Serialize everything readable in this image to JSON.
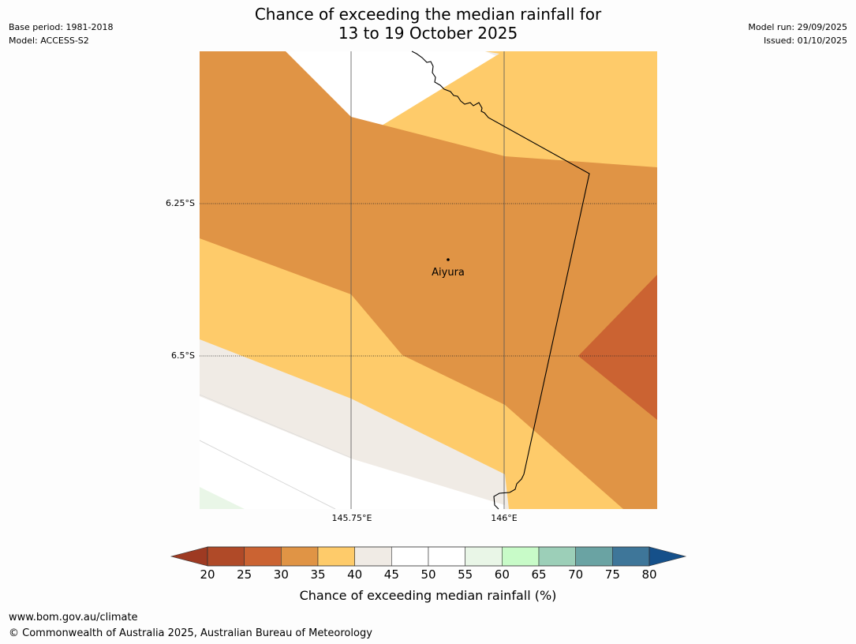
{
  "header": {
    "title_line1": "Chance of exceeding the median rainfall for",
    "title_line2": "13 to 19 October 2025",
    "base_period": "Base period: 1981-2018",
    "model": "Model: ACCESS-S2",
    "model_run": "Model run: 29/09/2025",
    "issued": "Issued: 01/10/2025"
  },
  "map": {
    "place_label": "Aiyura",
    "lat_ticks": [
      "6.25°S",
      "6.5°S"
    ],
    "lon_ticks": [
      "145.75°E",
      "146°E"
    ],
    "colors": {
      "c20_25": "#b04a28",
      "c25_30": "#cb6332",
      "c30_35": "#e09445",
      "c35_40": "#fecb6a",
      "c40_45": "#f0ebe5",
      "c45_55": "#ffffff",
      "c55_60": "#e9f6e7",
      "low_extend": "#9e3a22",
      "high_extend": "#15508a"
    }
  },
  "colorbar": {
    "ticks": [
      "20",
      "25",
      "30",
      "35",
      "40",
      "45",
      "50",
      "55",
      "60",
      "65",
      "70",
      "75",
      "80"
    ],
    "label": "Chance of exceeding median rainfall (%)",
    "colors": [
      "#b04a28",
      "#cb6332",
      "#e09445",
      "#fecb6a",
      "#f0ebe5",
      "#ffffff",
      "#ffffff",
      "#e9f6e7",
      "#c8fbc8",
      "#9ccfb8",
      "#6aa3a3",
      "#3e7699"
    ]
  },
  "footer": {
    "url": "www.bom.gov.au/climate",
    "copyright": "© Commonwealth of Australia 2025, Australian Bureau of Meteorology"
  }
}
